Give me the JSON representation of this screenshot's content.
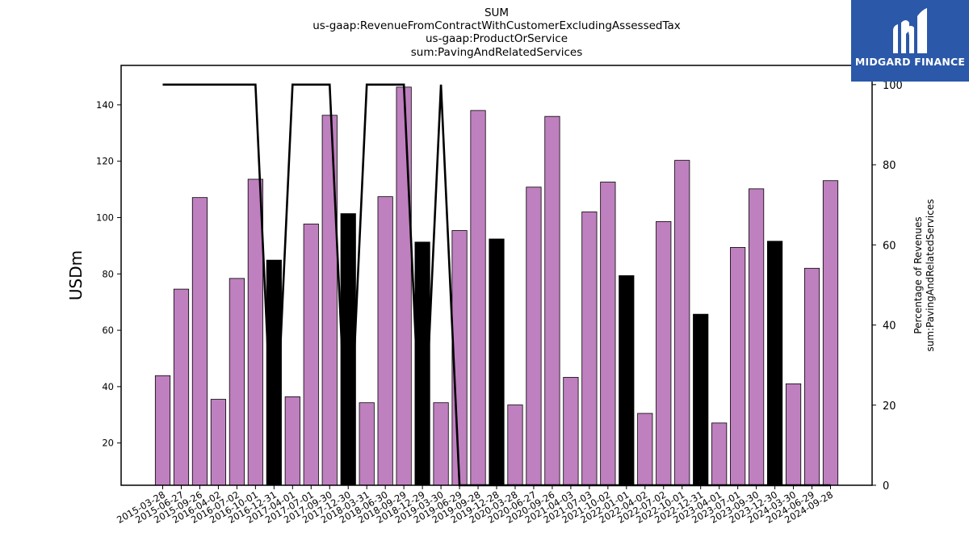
{
  "title_lines": [
    "SUM",
    "us-gaap:RevenueFromContractWithCustomerExcludingAssessedTax",
    "us-gaap:ProductOrService",
    "sum:PavingAndRelatedServices"
  ],
  "logo": {
    "text": "MIDGARD FINANCE",
    "color": "#2b58a8"
  },
  "colors": {
    "bar_default": "#bf80bf",
    "bar_highlight": "#000000",
    "line": "#000000"
  },
  "chart_data": {
    "type": "bar",
    "categories": [
      "2015-03-28",
      "2015-06-27",
      "2015-09-26",
      "2016-04-02",
      "2016-07-02",
      "2016-10-01",
      "2016-12-31",
      "2017-04-01",
      "2017-07-01",
      "2017-09-30",
      "2017-12-30",
      "2018-03-31",
      "2018-06-30",
      "2018-09-29",
      "2018-12-29",
      "2019-03-30",
      "2019-06-29",
      "2019-09-28",
      "2019-12-28",
      "2020-03-28",
      "2020-06-27",
      "2020-09-26",
      "2021-04-03",
      "2021-07-03",
      "2021-10-02",
      "2022-01-01",
      "2022-04-02",
      "2022-07-02",
      "2022-10-01",
      "2022-12-31",
      "2023-04-01",
      "2023-07-01",
      "2023-09-30",
      "2023-12-30",
      "2024-03-30",
      "2024-06-29",
      "2024-09-28"
    ],
    "values": [
      43.9,
      74.6,
      107.1,
      35.5,
      78.4,
      113.6,
      84.9,
      36.4,
      97.7,
      136.3,
      101.4,
      34.3,
      107.4,
      146.3,
      91.3,
      34.3,
      95.4,
      138.0,
      92.4,
      33.5,
      110.8,
      135.9,
      43.3,
      102.0,
      112.6,
      79.4,
      30.5,
      98.6,
      120.3,
      65.7,
      27.1,
      89.4,
      110.2,
      91.6,
      41.0,
      82.0,
      113.1
    ],
    "highlight": [
      false,
      false,
      false,
      false,
      false,
      false,
      true,
      false,
      false,
      false,
      true,
      false,
      false,
      false,
      true,
      false,
      false,
      false,
      true,
      false,
      false,
      false,
      false,
      false,
      false,
      true,
      false,
      false,
      false,
      true,
      false,
      false,
      false,
      true,
      false,
      false,
      false
    ],
    "line_series": {
      "axis": "right",
      "values": [
        100,
        100,
        100,
        100,
        100,
        100,
        0,
        100,
        100,
        100,
        0,
        100,
        100,
        100,
        0,
        100,
        0,
        0,
        0,
        0,
        0,
        0,
        0,
        0,
        0,
        0,
        0,
        0,
        0,
        0,
        0,
        0,
        0,
        0,
        0,
        0,
        0
      ]
    },
    "ylabel": "USDm",
    "y2label_lines": [
      "Percentage of Revenues",
      "sum:PavingAndRelatedServices"
    ],
    "ylim": [
      5,
      154
    ],
    "y2lim": [
      0,
      104.8
    ],
    "yticks": [
      20,
      40,
      60,
      80,
      100,
      120,
      140
    ],
    "y2ticks": [
      0,
      20,
      40,
      60,
      80,
      100
    ],
    "grid": false
  }
}
